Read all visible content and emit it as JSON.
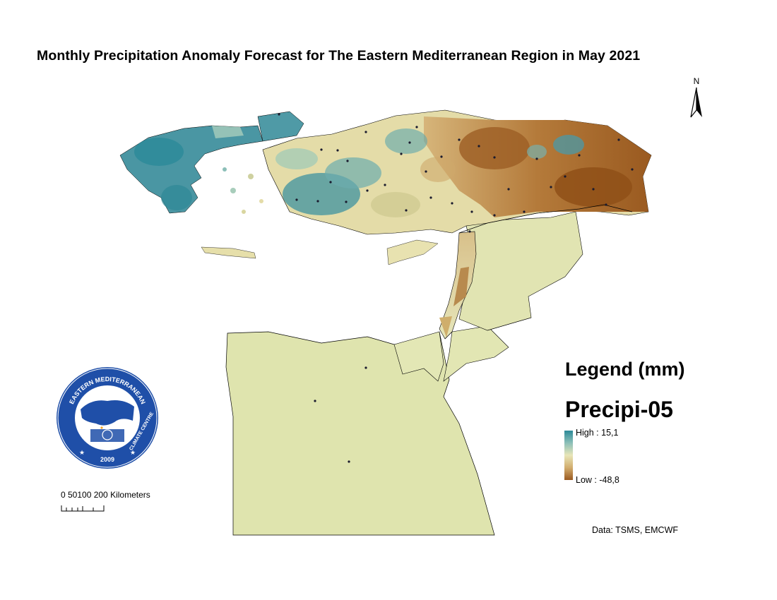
{
  "map": {
    "title": "Monthly Precipitation Anomaly Forecast for The Eastern Mediterranean Region in May 2021",
    "north_arrow": "N",
    "legend": {
      "title": "Legend (mm)",
      "layer": "Precipi-05",
      "high_label": "High : 15,1",
      "low_label": "Low : -48,8",
      "colors": {
        "high": "#2b8a98",
        "mid": "#e8e6b8",
        "low": "#9a5a20"
      }
    },
    "scale_bar": {
      "label": "0 50100 200 Kilometers"
    },
    "credit": "Data:  TSMS, EMCWF",
    "logo": {
      "top_text": "EASTERN MEDITERRANEAN",
      "side_text": "CLIMATE CENTRE",
      "year": "2009"
    }
  }
}
